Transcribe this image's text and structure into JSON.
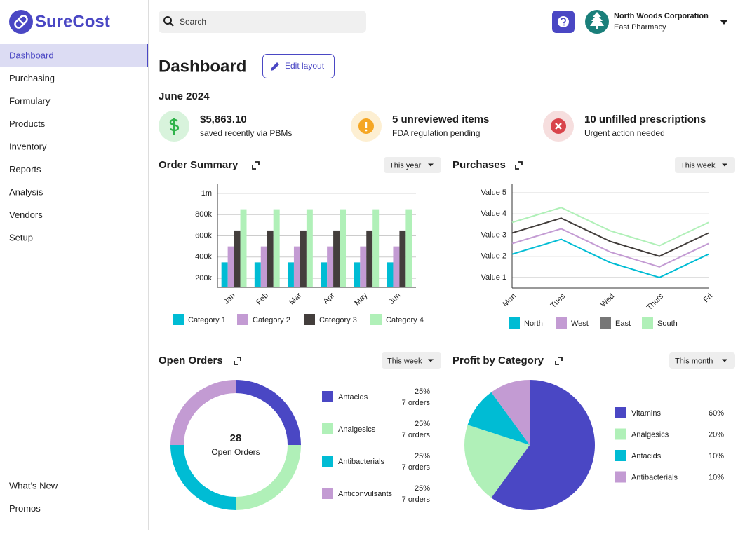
{
  "sidebar": {
    "logo": "SureCost",
    "nav": [
      "Dashboard",
      "Purchasing",
      "Formulary",
      "Products",
      "Inventory",
      "Reports",
      "Analysis",
      "Vendors",
      "Setup"
    ],
    "active": 0,
    "footer": [
      "What’s New",
      "Promos"
    ]
  },
  "header": {
    "search": "Search",
    "company": "North Woods Corporation",
    "location": "East Pharmacy"
  },
  "page": {
    "title": "Dashboard",
    "edit": "Edit layout",
    "period": "June 2024"
  },
  "stats": [
    {
      "value": "$5,863.10",
      "label": "saved recently via PBMs"
    },
    {
      "value": "5 unreviewed items",
      "label": "FDA regulation pending"
    },
    {
      "value": "10 unfilled prescriptions",
      "label": "Urgent action needed"
    }
  ],
  "charts": [
    {
      "type": "bar",
      "title": "Order Summary",
      "range": "This year",
      "categories": [
        "Jan",
        "Feb",
        "Mar",
        "Apr",
        "May",
        "Jun"
      ],
      "series": [
        {
          "name": "Category 1",
          "color": "#00bcd4",
          "values": [
            350000,
            350000,
            350000,
            350000,
            350000,
            350000
          ]
        },
        {
          "name": "Category 2",
          "color": "#c39bd3",
          "values": [
            500000,
            500000,
            500000,
            500000,
            500000,
            500000
          ]
        },
        {
          "name": "Category 3",
          "color": "#433e3c",
          "values": [
            650000,
            650000,
            650000,
            650000,
            650000,
            650000
          ]
        },
        {
          "name": "Category 4",
          "color": "#b0f0b8",
          "values": [
            850000,
            850000,
            850000,
            850000,
            850000,
            850000
          ]
        }
      ],
      "ylim": [
        115000,
        1085000
      ],
      "yticks": [
        {
          "value": 200000,
          "label": "200k"
        },
        {
          "value": 400000,
          "label": "400k"
        },
        {
          "value": 600000,
          "label": "600k"
        },
        {
          "value": 800000,
          "label": "800k"
        },
        {
          "value": 1000000,
          "label": "1m"
        }
      ],
      "grid": true
    },
    {
      "type": "line",
      "title": "Purchases",
      "range": "This week",
      "categories": [
        "Mon",
        "Tues",
        "Wed",
        "Thurs",
        "Fri"
      ],
      "series": [
        {
          "name": "North",
          "color": "#00bcd4",
          "values": [
            2.1,
            2.8,
            1.7,
            1.0,
            2.1
          ]
        },
        {
          "name": "West",
          "color": "#c39bd3",
          "values": [
            2.6,
            3.3,
            2.2,
            1.5,
            2.6
          ]
        },
        {
          "name": "East",
          "color": "#433e3c",
          "values": [
            3.1,
            3.8,
            2.7,
            2.0,
            3.1
          ]
        },
        {
          "name": "South",
          "color": "#b0f0b8",
          "values": [
            3.6,
            4.3,
            3.2,
            2.5,
            3.6
          ]
        }
      ],
      "ylim": [
        0.5,
        5.4
      ],
      "yticks": [
        {
          "value": 1,
          "label": "Value 1"
        },
        {
          "value": 2,
          "label": "Value 2"
        },
        {
          "value": 3,
          "label": "Value 3"
        },
        {
          "value": 4,
          "label": "Value 4"
        },
        {
          "value": 5,
          "label": "Value 5"
        }
      ],
      "grid": true
    },
    {
      "type": "donut",
      "title": "Open Orders",
      "range": "This week",
      "total": 28,
      "total_label": "Open Orders",
      "categories": [
        "Antacids",
        "Analgesics",
        "Antibacterials",
        "Anticonvulsants"
      ],
      "values": [
        25,
        25,
        25,
        25
      ],
      "value_labels": [
        "25%",
        "25%",
        "25%",
        "25%"
      ],
      "orders": [
        "7 orders",
        "7 orders",
        "7 orders",
        "7 orders"
      ],
      "colors": [
        "#4a47c4",
        "#b0f0b8",
        "#00bcd4",
        "#c39bd3"
      ]
    },
    {
      "type": "pie",
      "title": "Profit by Category",
      "range": "This month",
      "categories": [
        "Vitamins",
        "Analgesics",
        "Antacids",
        "Antibacterials"
      ],
      "values": [
        60,
        20,
        10,
        10
      ],
      "value_labels": [
        "60%",
        "20%",
        "10%",
        "10%"
      ],
      "colors": [
        "#4a47c4",
        "#b0f0b8",
        "#00bcd4",
        "#c39bd3"
      ]
    }
  ]
}
